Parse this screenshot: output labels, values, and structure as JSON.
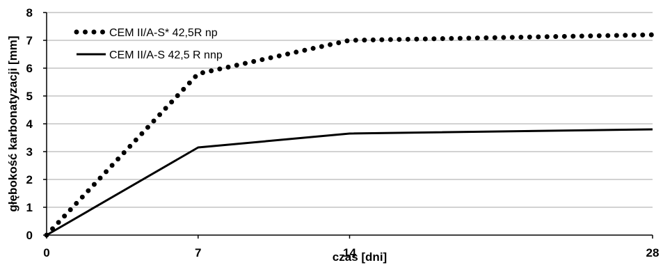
{
  "chart_data": {
    "type": "line",
    "xlabel": "czas [dni]",
    "ylabel": "głębokość karbonatyzacji [mm]",
    "x_ticks": [
      0,
      7,
      14,
      28
    ],
    "y_ticks": [
      0,
      1,
      2,
      3,
      4,
      5,
      6,
      7,
      8
    ],
    "xlim": [
      0,
      28
    ],
    "ylim": [
      0,
      8
    ],
    "grid": true,
    "legend_position": "top-left",
    "series": [
      {
        "name": "CEM II/A-S* 42,5R np",
        "style": "dotted",
        "color": "#000000",
        "x": [
          0,
          7,
          14,
          28
        ],
        "y": [
          0,
          5.8,
          7.0,
          7.2
        ]
      },
      {
        "name": "CEM II/A-S 42,5 R nnp",
        "style": "solid",
        "color": "#000000",
        "x": [
          0,
          7,
          14,
          28
        ],
        "y": [
          0,
          3.15,
          3.65,
          3.8
        ]
      }
    ]
  }
}
